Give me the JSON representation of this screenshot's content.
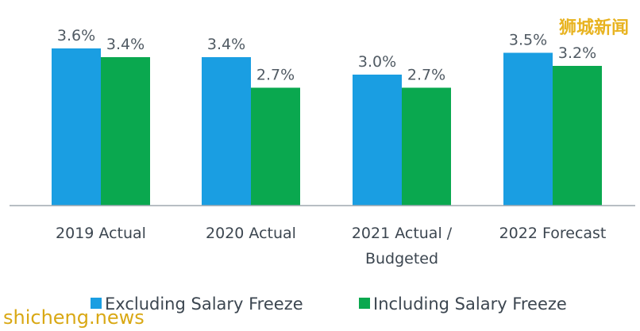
{
  "chart_data": {
    "type": "bar",
    "categories": [
      [
        "2019 Actual"
      ],
      [
        "2020 Actual"
      ],
      [
        "2021 Actual /",
        "Budgeted"
      ],
      [
        "2022 Forecast"
      ]
    ],
    "series": [
      {
        "name": "Excluding Salary Freeze",
        "color": "#1a9ee2",
        "values": [
          3.6,
          3.4,
          3.0,
          3.5
        ],
        "labels": [
          "3.6%",
          "3.4%",
          "3.0%",
          "3.5%"
        ]
      },
      {
        "name": "Including Salary Freeze",
        "color": "#0aa84f",
        "values": [
          3.4,
          2.7,
          2.7,
          3.2
        ],
        "labels": [
          "3.4%",
          "2.7%",
          "2.7%",
          "3.2%"
        ]
      }
    ],
    "ylim": [
      0,
      4.0
    ],
    "grid": false,
    "legend_position": "bottom",
    "axis_color": "#a0a8b0"
  },
  "watermarks": {
    "top_right": "狮城新闻",
    "bottom_left": "shicheng.news"
  }
}
